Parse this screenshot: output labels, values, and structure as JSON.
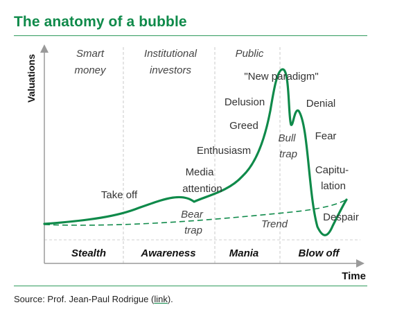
{
  "title": "The anatomy of a bubble",
  "axes": {
    "y_label": "Valuations",
    "x_label": "Time"
  },
  "participants": {
    "smart": [
      "Smart",
      "money"
    ],
    "institutional": [
      "Institutional",
      "investors"
    ],
    "public": "Public"
  },
  "phases": {
    "stealth": "Stealth",
    "awareness": "Awareness",
    "mania": "Mania",
    "blowoff": "Blow off"
  },
  "annotations": {
    "take_off": "Take off",
    "media": [
      "Media",
      "attention"
    ],
    "bear_trap": [
      "Bear",
      "trap"
    ],
    "trend": "Trend",
    "enthusiasm": "Enthusiasm",
    "greed": "Greed",
    "delusion": "Delusion",
    "new_paradigm": "\"New paradigm\"",
    "bull_trap": [
      "Bull",
      "trap"
    ],
    "denial": "Denial",
    "fear": "Fear",
    "capitulation": [
      "Capitu-",
      "lation"
    ],
    "despair": "Despair"
  },
  "source": {
    "prefix": "Source: Prof. Jean-Paul Rodrigue (",
    "link_text": "link",
    "suffix": ")."
  },
  "colors": {
    "accent": "#0f8a4a",
    "text": "#222222",
    "axis": "#9a9a9a"
  }
}
